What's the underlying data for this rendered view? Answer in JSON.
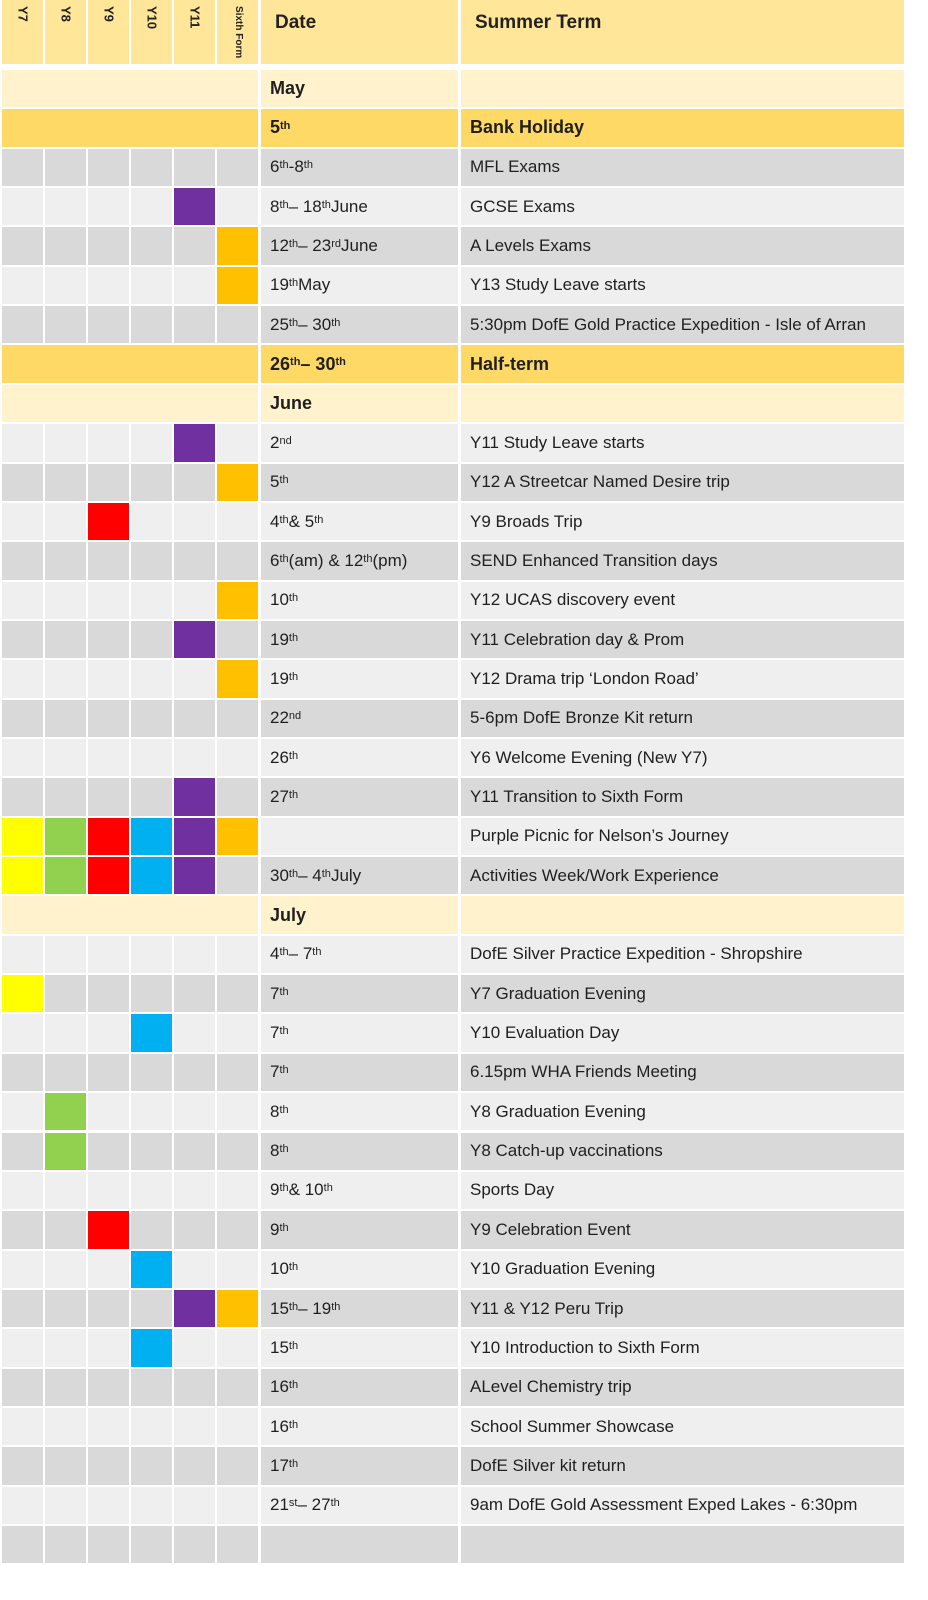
{
  "header": {
    "years": [
      "Y7",
      "Y8",
      "Y9",
      "Y10",
      "Y11",
      "Sixth Form"
    ],
    "date_label": "Date",
    "term_label": "Summer Term"
  },
  "colors": {
    "header_bg": "#FFE699",
    "month_bg": "#FFF2CC",
    "holiday_bg": "#FFD966",
    "row_dark": "#D9D9D9",
    "row_light": "#EFEFEF",
    "Y7": "#FFFF00",
    "Y8": "#92D050",
    "Y9": "#FF0000",
    "Y10": "#00B0F0",
    "Y11": "#7030A0",
    "Sixth Form": "#FFC000"
  },
  "rows": [
    {
      "kind": "month",
      "date": "May",
      "event": ""
    },
    {
      "kind": "holiday",
      "date": "5th",
      "event": "Bank Holiday"
    },
    {
      "kind": "event",
      "date": "6th-8th",
      "event": "MFL Exams",
      "marks": []
    },
    {
      "kind": "event",
      "date": "8th – 18th June",
      "event": "GCSE Exams",
      "marks": [
        "Y11"
      ]
    },
    {
      "kind": "event",
      "date": "12th – 23rd June",
      "event": "A Levels Exams",
      "marks": [
        "Sixth Form"
      ]
    },
    {
      "kind": "event",
      "date": "19th May",
      "event": "Y13 Study Leave starts",
      "marks": [
        "Sixth Form"
      ]
    },
    {
      "kind": "event",
      "date": "25th – 30th",
      "event": "5:30pm DofE Gold Practice Expedition  - Isle of Arran",
      "marks": []
    },
    {
      "kind": "holiday",
      "date": "26th – 30th",
      "event": "Half-term"
    },
    {
      "kind": "month",
      "date": "June",
      "event": ""
    },
    {
      "kind": "event",
      "date": "2nd",
      "event": "Y11 Study Leave starts",
      "marks": [
        "Y11"
      ]
    },
    {
      "kind": "event",
      "date": "5th",
      "event": "Y12 A Streetcar Named Desire trip",
      "marks": [
        "Sixth Form"
      ]
    },
    {
      "kind": "event",
      "date": "4th & 5th",
      "event": "Y9 Broads Trip",
      "marks": [
        "Y9"
      ]
    },
    {
      "kind": "event",
      "date": "6th(am) & 12th(pm)",
      "event": "SEND Enhanced Transition days",
      "marks": []
    },
    {
      "kind": "event",
      "date": "10th",
      "event": "Y12 UCAS discovery event",
      "marks": [
        "Sixth Form"
      ]
    },
    {
      "kind": "event",
      "date": "19th",
      "event": "Y11 Celebration day & Prom",
      "marks": [
        "Y11"
      ]
    },
    {
      "kind": "event",
      "date": "19th",
      "event": "Y12 Drama trip ‘London Road’",
      "marks": [
        "Sixth Form"
      ]
    },
    {
      "kind": "event",
      "date": "22nd",
      "event": "5-6pm DofE Bronze Kit return",
      "marks": []
    },
    {
      "kind": "event",
      "date": "26th",
      "event": "Y6 Welcome Evening (New Y7)",
      "marks": []
    },
    {
      "kind": "event",
      "date": "27th",
      "event": "Y11 Transition to Sixth Form",
      "marks": [
        "Y11"
      ]
    },
    {
      "kind": "event",
      "date": "",
      "event": "Purple Picnic for Nelson’s Journey",
      "marks": [
        "Y7",
        "Y8",
        "Y9",
        "Y10",
        "Y11",
        "Sixth Form"
      ]
    },
    {
      "kind": "event",
      "date": "30th – 4th July",
      "event": "Activities Week/Work Experience",
      "marks": [
        "Y7",
        "Y8",
        "Y9",
        "Y10",
        "Y11"
      ]
    },
    {
      "kind": "month",
      "date": "July",
      "event": ""
    },
    {
      "kind": "event",
      "date": "4th – 7th",
      "event": "DofE Silver Practice Expedition   - Shropshire",
      "marks": []
    },
    {
      "kind": "event",
      "date": "7th",
      "event": "Y7 Graduation Evening",
      "marks": [
        "Y7"
      ]
    },
    {
      "kind": "event",
      "date": "7th",
      "event": "Y10 Evaluation Day",
      "marks": [
        "Y10"
      ]
    },
    {
      "kind": "event",
      "date": "7th",
      "event": "6.15pm WHA Friends Meeting",
      "marks": []
    },
    {
      "kind": "event",
      "date": "8th",
      "event": "Y8 Graduation Evening",
      "marks": [
        "Y8"
      ]
    },
    {
      "kind": "event",
      "date": "8th",
      "event": "Y8 Catch-up vaccinations",
      "marks": [
        "Y8"
      ]
    },
    {
      "kind": "event",
      "date": "9th & 10th",
      "event": "Sports Day",
      "marks": []
    },
    {
      "kind": "event",
      "date": "9th",
      "event": "Y9 Celebration Event",
      "marks": [
        "Y9"
      ]
    },
    {
      "kind": "event",
      "date": "10th",
      "event": "Y10 Graduation Evening",
      "marks": [
        "Y10"
      ]
    },
    {
      "kind": "event",
      "date": "15th – 19th",
      "event": "Y11 & Y12 Peru Trip",
      "marks": [
        "Y11",
        "Sixth Form"
      ]
    },
    {
      "kind": "event",
      "date": "15th",
      "event": "Y10 Introduction to Sixth Form",
      "marks": [
        "Y10"
      ]
    },
    {
      "kind": "event",
      "date": "16th",
      "event": "ALevel Chemistry trip",
      "marks": []
    },
    {
      "kind": "event",
      "date": "16th",
      "event": "School Summer Showcase",
      "marks": []
    },
    {
      "kind": "event",
      "date": "17th",
      "event": "DofE Silver kit return",
      "marks": []
    },
    {
      "kind": "event",
      "date": "21st – 27th",
      "event": "9am DofE Gold Assessment Exped Lakes - 6:30pm",
      "marks": []
    },
    {
      "kind": "event",
      "date": "",
      "event": "",
      "marks": []
    }
  ]
}
